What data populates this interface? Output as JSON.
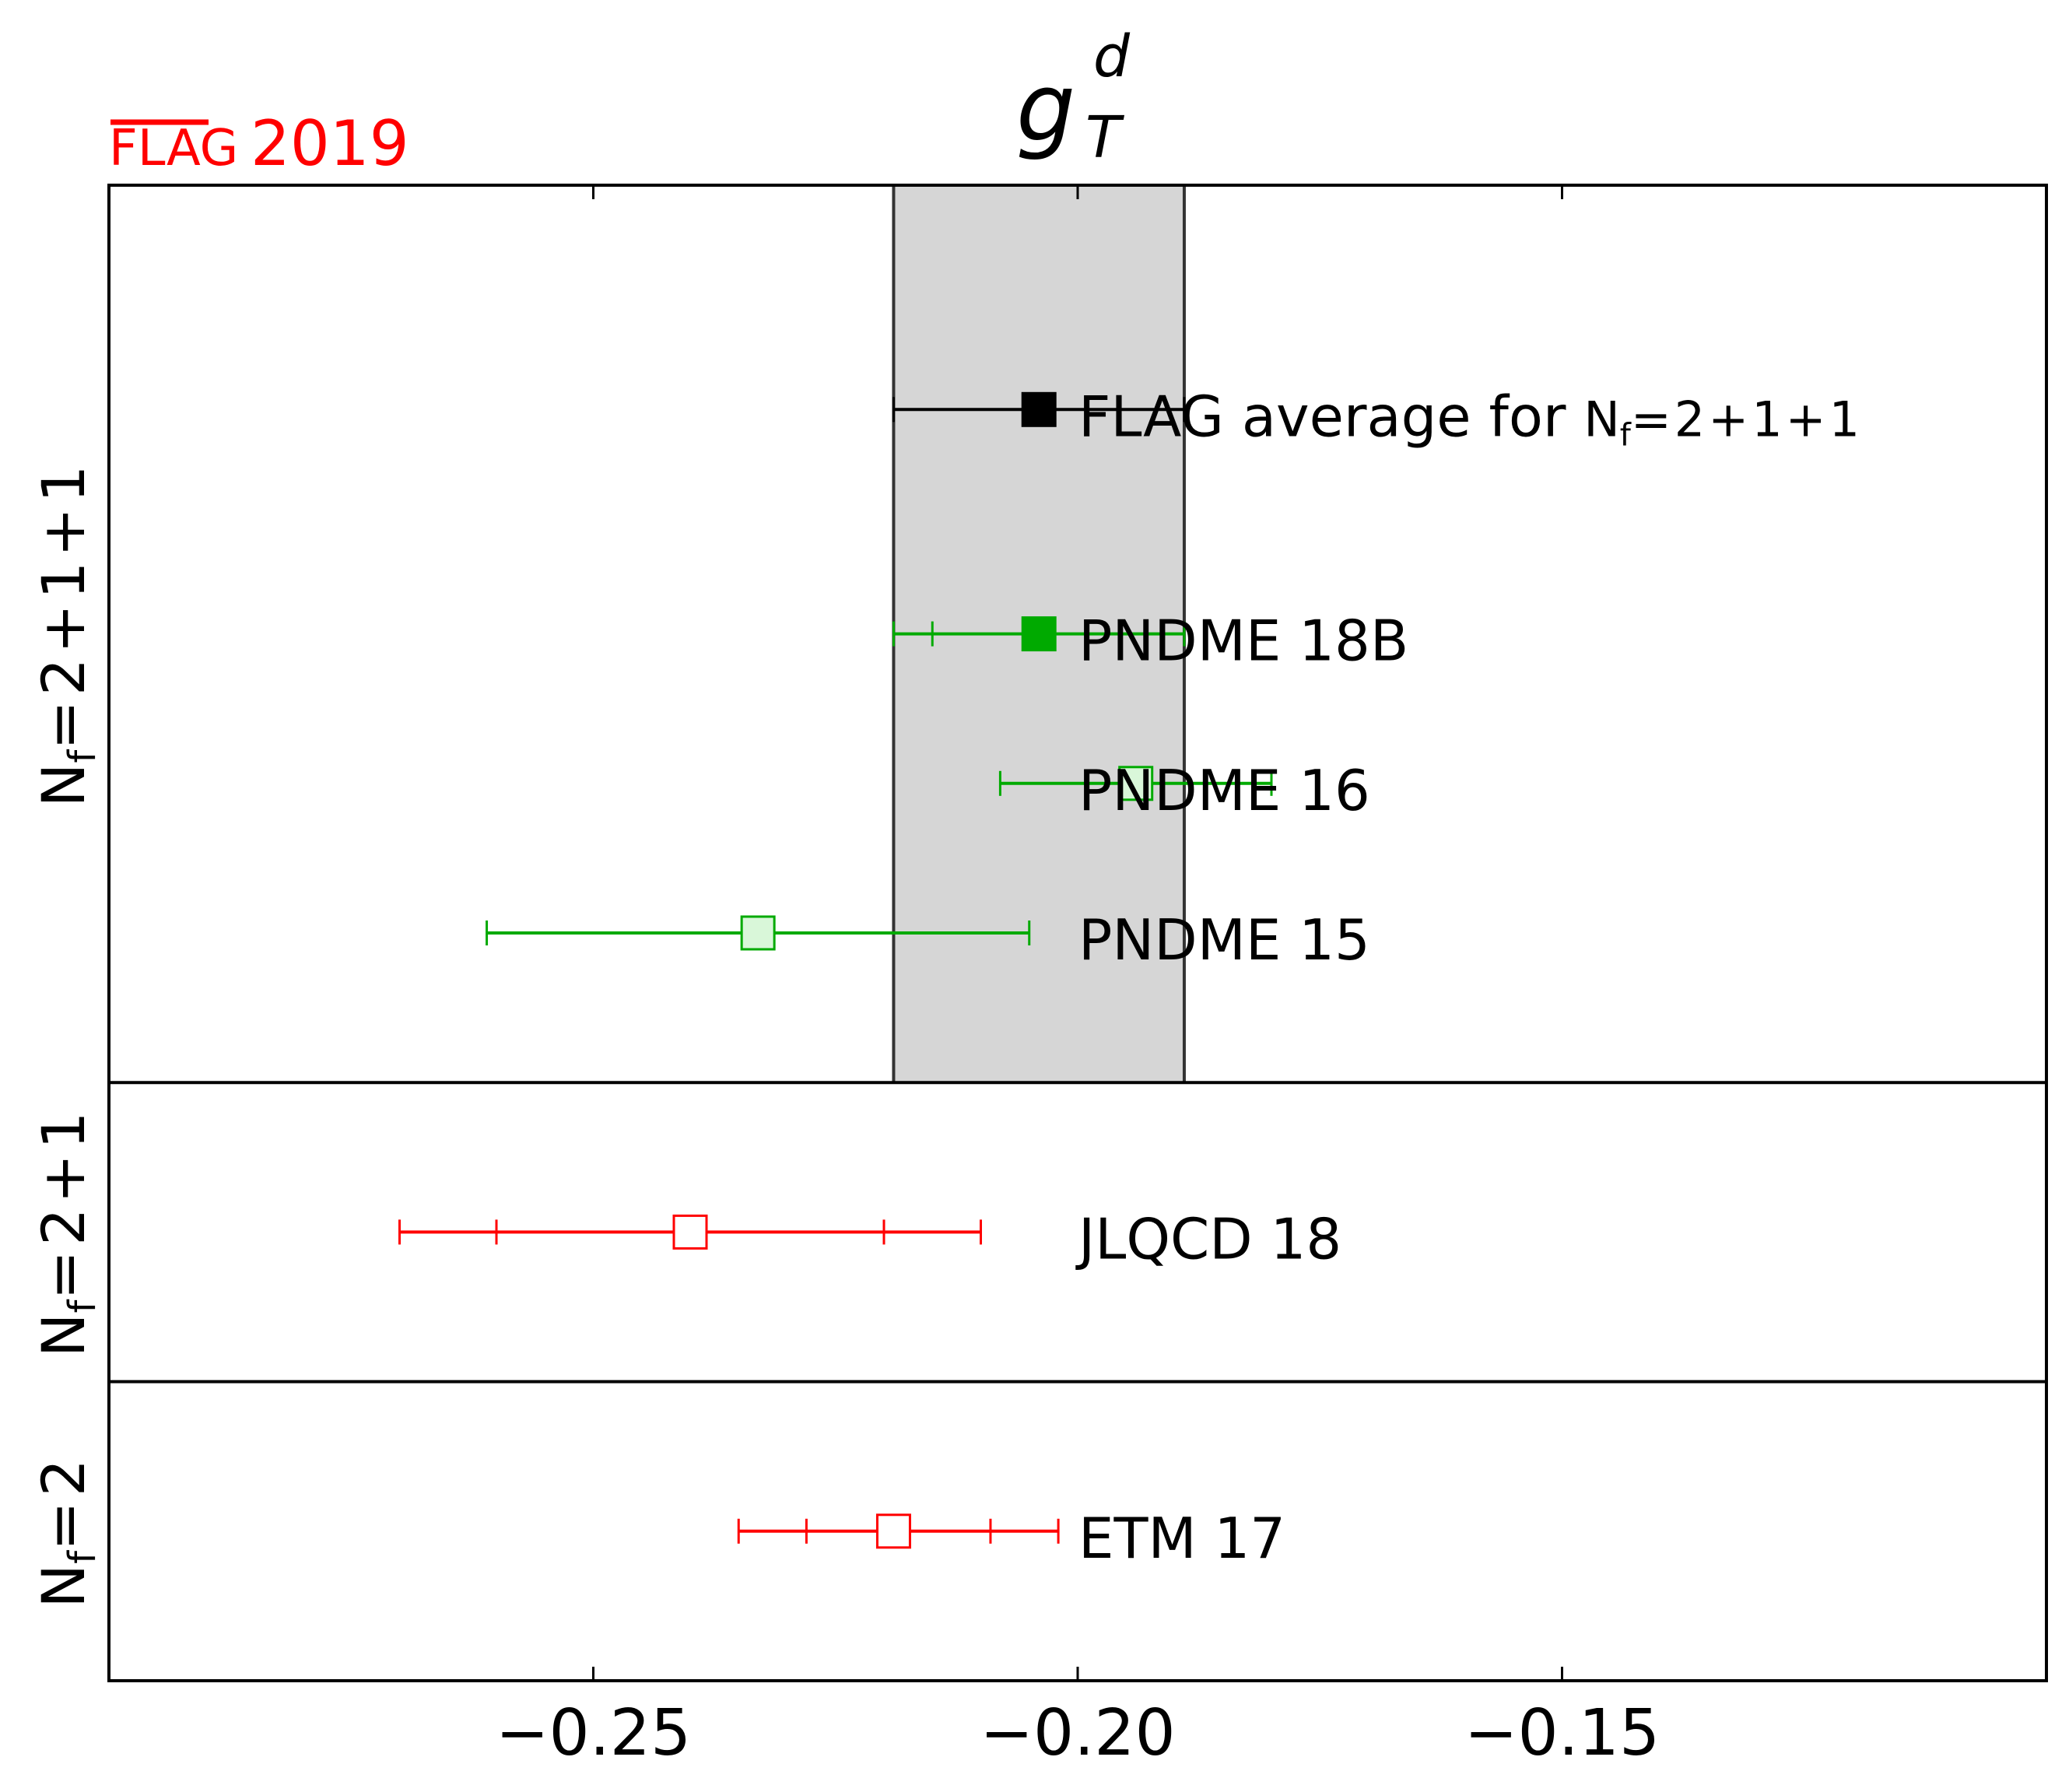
{
  "badge": {
    "flag_label": "FLAG",
    "year_label": "2019",
    "color": "#ff0000"
  },
  "chart_data": {
    "type": "scatter",
    "title": "g_T^d",
    "title_main": "g",
    "title_sup": "d",
    "title_sub": "T",
    "xlabel": "",
    "ylabel": "",
    "xlim": [
      -0.3,
      -0.1
    ],
    "x_ticks": [
      -0.25,
      -0.2,
      -0.15
    ],
    "x_tick_labels": [
      "−0.25",
      "−0.20",
      "−0.15"
    ],
    "grid": false,
    "band": {
      "center": -0.204,
      "low": -0.219,
      "high": -0.189,
      "color": "#d6d6d6"
    },
    "groups": [
      {
        "label_main": "N",
        "label_sub": "f",
        "label_rest": "=2+1+1",
        "rows": 6
      },
      {
        "label_main": "N",
        "label_sub": "f",
        "label_rest": "=2+1",
        "rows": 2
      },
      {
        "label_main": "N",
        "label_sub": "f",
        "label_rest": "=2",
        "rows": 2
      }
    ],
    "points": [
      {
        "name": "FLAG average for ",
        "name_sym": "N",
        "name_sub": "f",
        "name_rest": "=2+1+1",
        "group": 0,
        "row": 1.5,
        "value": -0.204,
        "stat": null,
        "total": [
          -0.219,
          -0.189
        ],
        "marker": "filled",
        "color": "#000000",
        "fill": "#000000"
      },
      {
        "name": "PNDME 18B",
        "group": 0,
        "row": 3,
        "value": -0.204,
        "stat": [
          -0.215,
          -0.193
        ],
        "total": [
          -0.219,
          -0.189
        ],
        "marker": "filled",
        "color": "#00aa00",
        "fill": "#00aa00"
      },
      {
        "name": "PNDME 16",
        "group": 0,
        "row": 4,
        "value": -0.194,
        "stat": null,
        "total": [
          -0.208,
          -0.18
        ],
        "marker": "open",
        "color": "#00aa00",
        "fill": "#d9f7d9"
      },
      {
        "name": "PNDME 15",
        "group": 0,
        "row": 5,
        "value": -0.233,
        "stat": null,
        "total": [
          -0.261,
          -0.205
        ],
        "marker": "open",
        "color": "#00aa00",
        "fill": "#d9f7d9"
      },
      {
        "name": "JLQCD 18",
        "group": 1,
        "row": 1,
        "value": -0.24,
        "stat": [
          -0.26,
          -0.22
        ],
        "total": [
          -0.27,
          -0.21
        ],
        "marker": "open",
        "color": "#ff0000",
        "fill": "#ffffff"
      },
      {
        "name": "ETM 17",
        "group": 2,
        "row": 1,
        "value": -0.219,
        "stat": [
          -0.228,
          -0.209
        ],
        "total": [
          -0.235,
          -0.202
        ],
        "marker": "open",
        "color": "#ff0000",
        "fill": "#ffffff"
      }
    ]
  }
}
